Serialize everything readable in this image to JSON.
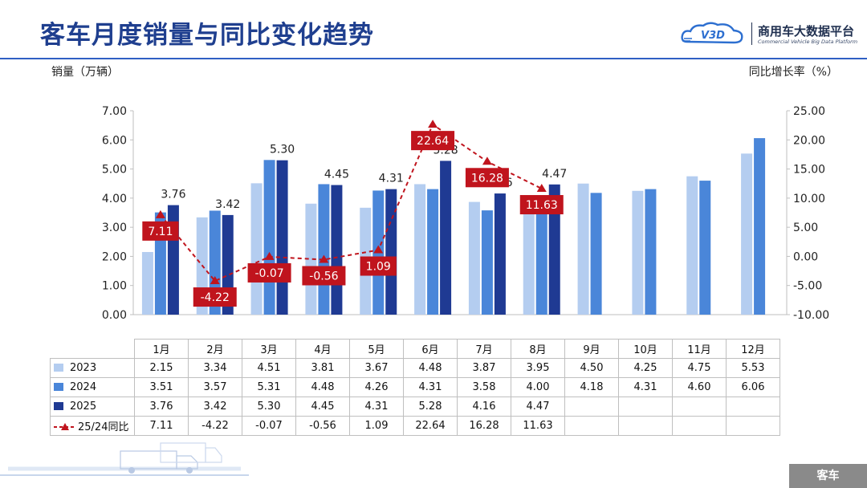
{
  "header": {
    "title": "客车月度销量与同比变化趋势",
    "logo_mark": "V3D",
    "logo_name": "商用车大数据平台",
    "logo_subtitle": "Commercial Vehicle Big Data Platform"
  },
  "axis_titles": {
    "left": "销量（万辆）",
    "right": "同比增长率（%）"
  },
  "section_tag": "客车",
  "colors": {
    "title": "#1f3f8f",
    "rule": "#2f5fc4",
    "s2023": "#b4cdf0",
    "s2024": "#4a86d9",
    "s2025": "#1f3a93",
    "ratio": "#c0141d",
    "tag": "#8a8a8a"
  },
  "chart_data": {
    "type": "bar",
    "categories": [
      "1月",
      "2月",
      "3月",
      "4月",
      "5月",
      "6月",
      "7月",
      "8月",
      "9月",
      "10月",
      "11月",
      "12月"
    ],
    "series": [
      {
        "name": "2023",
        "values": [
          2.15,
          3.34,
          4.51,
          3.81,
          3.67,
          4.48,
          3.87,
          3.95,
          4.5,
          4.25,
          4.75,
          5.53
        ]
      },
      {
        "name": "2024",
        "values": [
          3.51,
          3.57,
          5.31,
          4.48,
          4.26,
          4.31,
          3.58,
          4.0,
          4.18,
          4.31,
          4.6,
          6.06
        ]
      },
      {
        "name": "2025",
        "values": [
          3.76,
          3.42,
          5.3,
          4.45,
          4.31,
          5.28,
          4.16,
          4.47,
          null,
          null,
          null,
          null
        ]
      }
    ],
    "line_series": {
      "name": "25/24同比",
      "type": "line",
      "axis": "right",
      "style": "dashed",
      "values": [
        7.11,
        -4.22,
        -0.07,
        -0.56,
        1.09,
        22.64,
        16.28,
        11.63,
        null,
        null,
        null,
        null
      ]
    },
    "ylabel": "销量（万辆）",
    "y2label": "同比增长率（%）",
    "ylim": [
      0,
      7
    ],
    "y2lim": [
      -10,
      25
    ],
    "yticks": [
      "0.00",
      "1.00",
      "2.00",
      "3.00",
      "4.00",
      "5.00",
      "6.00",
      "7.00"
    ],
    "y2ticks": [
      "-10.00",
      "-5.00",
      "0.00",
      "5.00",
      "10.00",
      "15.00",
      "20.00",
      "25.00"
    ],
    "bar_labels_series": "2025",
    "grid": false,
    "legend": "data table below chart"
  },
  "table": {
    "rows": [
      {
        "label": "2023",
        "key": "s2023",
        "cells": [
          "2.15",
          "3.34",
          "4.51",
          "3.81",
          "3.67",
          "4.48",
          "3.87",
          "3.95",
          "4.50",
          "4.25",
          "4.75",
          "5.53"
        ]
      },
      {
        "label": "2024",
        "key": "s2024",
        "cells": [
          "3.51",
          "3.57",
          "5.31",
          "4.48",
          "4.26",
          "4.31",
          "3.58",
          "4.00",
          "4.18",
          "4.31",
          "4.60",
          "6.06"
        ]
      },
      {
        "label": "2025",
        "key": "s2025",
        "cells": [
          "3.76",
          "3.42",
          "5.30",
          "4.45",
          "4.31",
          "5.28",
          "4.16",
          "4.47",
          "",
          "",
          "",
          ""
        ]
      },
      {
        "label": "25/24同比",
        "key": "ratio",
        "cells": [
          "7.11",
          "-4.22",
          "-0.07",
          "-0.56",
          "1.09",
          "22.64",
          "16.28",
          "11.63",
          "",
          "",
          "",
          ""
        ]
      }
    ]
  }
}
